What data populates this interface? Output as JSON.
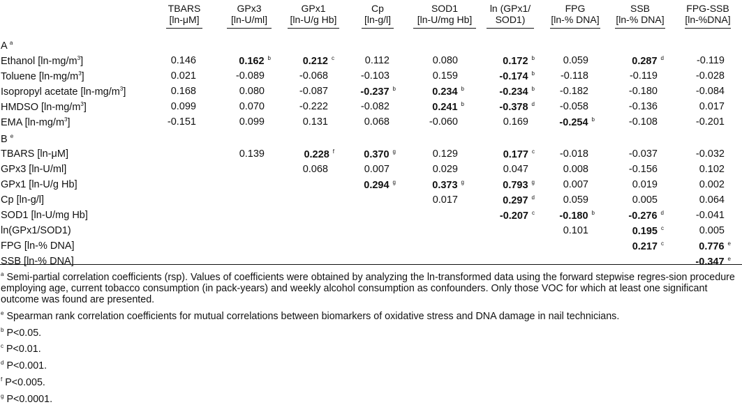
{
  "columns": [
    {
      "l1": "TBARS",
      "l2": "[ln-μM]"
    },
    {
      "l1": "GPx3",
      "l2": "[ln-U/ml]"
    },
    {
      "l1": "GPx1",
      "l2": "[ln-U/g Hb]"
    },
    {
      "l1": "Cp",
      "l2": "[ln-g/l]"
    },
    {
      "l1": "SOD1",
      "l2": "[ln-U/mg Hb]"
    },
    {
      "l1": "ln (GPx1/",
      "l2": "SOD1)"
    },
    {
      "l1": "FPG",
      "l2": "[ln-% DNA]"
    },
    {
      "l1": "SSB",
      "l2": "[ln-% DNA]"
    },
    {
      "l1": "FPG-SSB",
      "l2": "[ln-%DNA]"
    }
  ],
  "sectionA": {
    "label": "A",
    "sup": "a"
  },
  "sectionB": {
    "label": "B",
    "sup": "e"
  },
  "rowsA": [
    {
      "label": "Ethanol [ln-mg/m",
      "sup3": "3",
      "end": "]",
      "cells": [
        {
          "v": "0.146"
        },
        {
          "v": "0.162",
          "b": true,
          "s": "b"
        },
        {
          "v": "0.212",
          "b": true,
          "s": "c"
        },
        {
          "v": "0.112"
        },
        {
          "v": "0.080"
        },
        {
          "v": "0.172",
          "b": true,
          "s": "b"
        },
        {
          "v": "0.059"
        },
        {
          "v": "0.287",
          "b": true,
          "s": "d"
        },
        {
          "v": "-0.119"
        }
      ]
    },
    {
      "label": "Toluene [ln-mg/m",
      "sup3": "3",
      "end": "]",
      "cells": [
        {
          "v": "0.021"
        },
        {
          "v": "-0.089"
        },
        {
          "v": "-0.068"
        },
        {
          "v": "-0.103"
        },
        {
          "v": "0.159"
        },
        {
          "v": "-0.174",
          "b": true,
          "s": "b"
        },
        {
          "v": "-0.118"
        },
        {
          "v": "-0.119"
        },
        {
          "v": "-0.028"
        }
      ]
    },
    {
      "label": "Isopropyl acetate [ln-mg/m",
      "sup3": "3",
      "end": "]",
      "cells": [
        {
          "v": "0.168"
        },
        {
          "v": "0.080"
        },
        {
          "v": "-0.087"
        },
        {
          "v": "-0.237",
          "b": true,
          "s": "b"
        },
        {
          "v": "0.234",
          "b": true,
          "s": "b"
        },
        {
          "v": "-0.234",
          "b": true,
          "s": "b"
        },
        {
          "v": "-0.182"
        },
        {
          "v": "-0.180"
        },
        {
          "v": "-0.084"
        }
      ]
    },
    {
      "label": "HMDSO [ln-mg/m",
      "sup3": "3",
      "end": "]",
      "cells": [
        {
          "v": "0.099"
        },
        {
          "v": "0.070"
        },
        {
          "v": "-0.222"
        },
        {
          "v": "-0.082"
        },
        {
          "v": "0.241",
          "b": true,
          "s": "b"
        },
        {
          "v": "-0.378",
          "b": true,
          "s": "d"
        },
        {
          "v": "-0.058"
        },
        {
          "v": "-0.136"
        },
        {
          "v": "0.017"
        }
      ]
    },
    {
      "label": "EMA [ln-mg/m",
      "sup3": "3",
      "end": "]",
      "cells": [
        {
          "v": "-0.151"
        },
        {
          "v": "0.099"
        },
        {
          "v": "0.131"
        },
        {
          "v": "0.068"
        },
        {
          "v": "-0.060"
        },
        {
          "v": "0.169"
        },
        {
          "v": "-0.254",
          "b": true,
          "s": "b"
        },
        {
          "v": "-0.108"
        },
        {
          "v": "-0.201"
        }
      ]
    }
  ],
  "rowsB": [
    {
      "label": "TBARS [ln-μM]",
      "cells": [
        null,
        {
          "v": "0.139"
        },
        {
          "v": "0.228",
          "b": true,
          "s": "f"
        },
        {
          "v": "0.370",
          "b": true,
          "s": "g"
        },
        {
          "v": "0.129"
        },
        {
          "v": "0.177",
          "b": true,
          "s": "c"
        },
        {
          "v": "-0.018"
        },
        {
          "v": "-0.037"
        },
        {
          "v": "-0.032"
        }
      ]
    },
    {
      "label": "GPx3 [ln-U/ml]",
      "cells": [
        null,
        null,
        {
          "v": "0.068"
        },
        {
          "v": "0.007"
        },
        {
          "v": "0.029"
        },
        {
          "v": "0.047"
        },
        {
          "v": "0.008"
        },
        {
          "v": "-0.156"
        },
        {
          "v": "0.102"
        }
      ]
    },
    {
      "label": "GPx1 [ln-U/g Hb]",
      "cells": [
        null,
        null,
        null,
        {
          "v": "0.294",
          "b": true,
          "s": "g"
        },
        {
          "v": "0.373",
          "b": true,
          "s": "g"
        },
        {
          "v": "0.793",
          "b": true,
          "s": "g"
        },
        {
          "v": "0.007"
        },
        {
          "v": "0.019"
        },
        {
          "v": "0.002"
        }
      ]
    },
    {
      "label": "Cp [ln-g/l]",
      "cells": [
        null,
        null,
        null,
        null,
        {
          "v": "0.017"
        },
        {
          "v": "0.297",
          "b": true,
          "s": "d"
        },
        {
          "v": "0.059"
        },
        {
          "v": "0.005"
        },
        {
          "v": "0.064"
        }
      ]
    },
    {
      "label": "SOD1 [ln-U/mg Hb]",
      "cells": [
        null,
        null,
        null,
        null,
        null,
        {
          "v": "-0.207",
          "b": true,
          "s": "c"
        },
        {
          "v": "-0.180",
          "b": true,
          "s": "b"
        },
        {
          "v": "-0.276",
          "b": true,
          "s": "d"
        },
        {
          "v": "-0.041"
        }
      ]
    },
    {
      "label": "ln(GPx1/SOD1)",
      "cells": [
        null,
        null,
        null,
        null,
        null,
        null,
        {
          "v": "0.101"
        },
        {
          "v": "0.195",
          "b": true,
          "s": "c"
        },
        {
          "v": "0.005"
        }
      ]
    },
    {
      "label": "FPG [ln-% DNA]",
      "cells": [
        null,
        null,
        null,
        null,
        null,
        null,
        null,
        {
          "v": "0.217",
          "b": true,
          "s": "c"
        },
        {
          "v": "0.776",
          "b": true,
          "s": "e"
        }
      ]
    },
    {
      "label": "SSB [ln-% DNA]",
      "cells": [
        null,
        null,
        null,
        null,
        null,
        null,
        null,
        null,
        {
          "v": "-0.347",
          "b": true,
          "s": "e"
        }
      ]
    }
  ],
  "footnotes": [
    {
      "mark": "a",
      "text": "Semi-partial correlation coefficients (rsp). Values of coefficients were obtained by analyzing the ln-transformed data using the forward stepwise regres-sion procedure employing age, current tobacco consumption (in pack-years) and weekly alcohol consumption as confounders. Only those VOC for which at least one significant outcome was found are presented."
    },
    {
      "mark": "e",
      "text": "Spearman rank correlation coefficients for mutual correlations between biomarkers of oxidative stress and DNA damage in nail technicians."
    },
    {
      "mark": "b",
      "text": "P<0.05."
    },
    {
      "mark": "c",
      "text": "P<0.01."
    },
    {
      "mark": "d",
      "text": "P<0.001."
    },
    {
      "mark": "f",
      "text": "P<0.005."
    },
    {
      "mark": "g",
      "text": "P<0.0001."
    }
  ]
}
